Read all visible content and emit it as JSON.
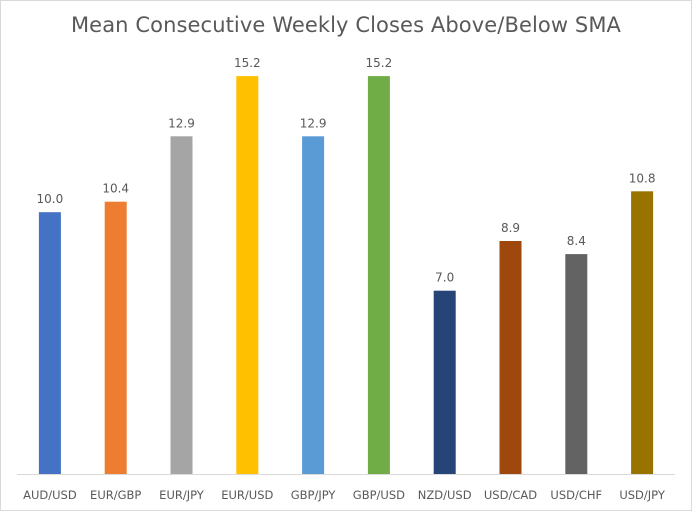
{
  "chart_data": {
    "type": "bar",
    "title": "Mean Consecutive Weekly Closes Above/Below SMA",
    "xlabel": "",
    "ylabel": "",
    "ylim": [
      0,
      16
    ],
    "grid": false,
    "legend": "none",
    "categories": [
      "AUD/USD",
      "EUR/GBP",
      "EUR/JPY",
      "EUR/USD",
      "GBP/JPY",
      "GBP/USD",
      "NZD/USD",
      "USD/CAD",
      "USD/CHF",
      "USD/JPY"
    ],
    "values": [
      10.0,
      10.4,
      12.9,
      15.2,
      12.9,
      15.2,
      7.0,
      8.9,
      8.4,
      10.8
    ],
    "value_labels": [
      "10.0",
      "10.4",
      "12.9",
      "15.2",
      "12.9",
      "15.2",
      "7.0",
      "8.9",
      "8.4",
      "10.8"
    ],
    "colors": [
      "#4472c4",
      "#ed7d31",
      "#a5a5a5",
      "#ffc000",
      "#5b9bd5",
      "#70ad47",
      "#264478",
      "#9e480e",
      "#636363",
      "#997300"
    ]
  }
}
